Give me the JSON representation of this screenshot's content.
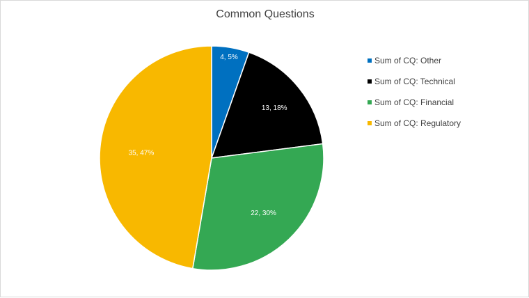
{
  "chart_data": {
    "type": "pie",
    "title": "Common Questions",
    "categories": [
      "Sum of CQ: Other",
      "Sum of CQ: Technical",
      "Sum of CQ: Financial",
      "Sum of CQ: Regulatory"
    ],
    "values": [
      4,
      13,
      22,
      35
    ],
    "data_labels": [
      "4, 5%",
      "13, 18%",
      "22, 30%",
      "35, 47%"
    ],
    "colors": [
      "#0070C0",
      "#000000",
      "#34A853",
      "#F8B800"
    ],
    "legend_position": "right"
  }
}
